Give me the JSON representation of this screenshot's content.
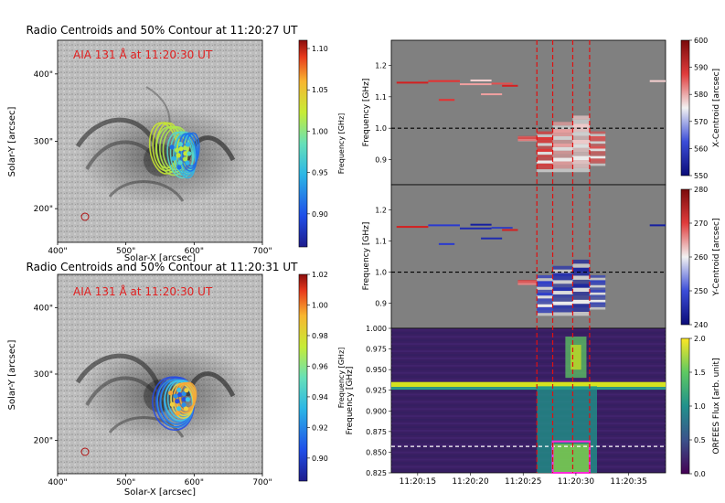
{
  "chart_data": [
    {
      "type": "scatter",
      "panel": "top-left image",
      "title": "Radio Centroids and 50% Contour at 11:20:27 UT",
      "annotation": "AIA 131 Å at 11:20:30 UT",
      "xlabel": "Solar-X [arcsec]",
      "ylabel": "Solar-Y [arcsec]",
      "xlim": [
        400,
        700
      ],
      "ylim": [
        150,
        450
      ],
      "xticks": [
        "400\"",
        "500\"",
        "600\"",
        "700\""
      ],
      "yticks": [
        "200\"",
        "300\"",
        "400\""
      ],
      "colorbar": {
        "label": "Frequency [GHz]",
        "min": 0.86,
        "max": 1.11,
        "ticks": [
          "0.90",
          "0.95",
          "1.00",
          "1.05",
          "1.10"
        ]
      },
      "contours": [
        {
          "freq": 0.99,
          "cx": 558,
          "cy": 292,
          "rx": 20,
          "ry": 38,
          "color": "#c8e632"
        },
        {
          "freq": 0.98,
          "cx": 570,
          "cy": 288,
          "rx": 22,
          "ry": 36,
          "color": "#aee84a"
        },
        {
          "freq": 0.95,
          "cx": 582,
          "cy": 282,
          "rx": 18,
          "ry": 34,
          "color": "#56d6c8"
        },
        {
          "freq": 0.93,
          "cx": 590,
          "cy": 280,
          "rx": 14,
          "ry": 32,
          "color": "#30b4e6"
        },
        {
          "freq": 0.91,
          "cx": 594,
          "cy": 286,
          "rx": 12,
          "ry": 28,
          "color": "#1e6ee6"
        }
      ],
      "centroids_note": "cluster near (565, 288)",
      "beam": {
        "x": 432,
        "y": 188
      }
    },
    {
      "type": "scatter",
      "panel": "bottom-left image",
      "title": "Radio Centroids and 50% Contour at 11:20:31 UT",
      "annotation": "AIA 131 Å at 11:20:30 UT",
      "xlabel": "Solar-X [arcsec]",
      "ylabel": "Solar-Y [arcsec]",
      "xlim": [
        400,
        700
      ],
      "ylim": [
        150,
        450
      ],
      "xticks": [
        "400\"",
        "500\"",
        "600\"",
        "700\""
      ],
      "yticks": [
        "200\"",
        "300\"",
        "400\""
      ],
      "colorbar": {
        "label": "Frequency [GHz]",
        "min": 0.885,
        "max": 1.02,
        "ticks": [
          "0.90",
          "0.92",
          "0.94",
          "0.96",
          "0.98",
          "1.00",
          "1.02"
        ]
      },
      "contours": [
        {
          "freq": 0.89,
          "cx": 572,
          "cy": 258,
          "rx": 30,
          "ry": 40,
          "color": "#2a4ee0"
        },
        {
          "freq": 0.91,
          "cx": 575,
          "cy": 258,
          "rx": 26,
          "ry": 36,
          "color": "#2b8fe8"
        },
        {
          "freq": 0.93,
          "cx": 580,
          "cy": 262,
          "rx": 20,
          "ry": 30,
          "color": "#3fc4e8"
        },
        {
          "freq": 0.95,
          "cx": 585,
          "cy": 262,
          "rx": 16,
          "ry": 26,
          "color": "#f0d040"
        },
        {
          "freq": 0.96,
          "cx": 588,
          "cy": 266,
          "rx": 14,
          "ry": 22,
          "color": "#f7a636"
        }
      ],
      "centroids_note": "cluster near (580, 270)",
      "beam": {
        "x": 432,
        "y": 192
      }
    },
    {
      "type": "heatmap",
      "panel": "right top",
      "ylabel": "Frequency [GHz]",
      "ylim": [
        0.82,
        1.28
      ],
      "yticks": [
        "0.9",
        "1.0",
        "1.1",
        "1.2"
      ],
      "colorbar": {
        "label": "X-Centroid [arcsec]",
        "min": 550,
        "max": 600,
        "ticks": [
          "550",
          "560",
          "570",
          "580",
          "590",
          "600"
        ]
      },
      "reference_line_freq": 1.0
    },
    {
      "type": "heatmap",
      "panel": "right middle",
      "ylabel": "Frequency [GHz]",
      "ylim": [
        0.82,
        1.28
      ],
      "yticks": [
        "0.9",
        "1.0",
        "1.1",
        "1.2"
      ],
      "colorbar": {
        "label": "Y-Centroid [arcsec]",
        "min": 240,
        "max": 280,
        "ticks": [
          "240",
          "250",
          "260",
          "270",
          "280"
        ]
      },
      "reference_line_freq": 1.0
    },
    {
      "type": "heatmap",
      "panel": "right bottom",
      "ylabel": "Frequency [GHz]",
      "ylim": [
        0.825,
        1.0
      ],
      "yticks": [
        "0.825",
        "0.850",
        "0.875",
        "0.900",
        "0.925",
        "0.950",
        "0.975",
        "1.000"
      ],
      "xlim_seconds": [
        12.5,
        38.5
      ],
      "xtick_seconds": [
        15,
        20,
        25,
        30,
        35
      ],
      "xticks": [
        "11:20:15",
        "11:20:20",
        "11:20:25",
        "11:20:30",
        "11:20:35"
      ],
      "colorbar": {
        "label": "ORFEES Flux [arb. unit]",
        "min": 0.0,
        "max": 2.0,
        "ticks": [
          "0.0",
          "0.5",
          "1.0",
          "1.5",
          "2.0"
        ]
      },
      "reference_line_freq": 0.857,
      "box": {
        "t0": 27.8,
        "t1": 31.3,
        "f0": 0.825,
        "f1": 0.863
      }
    }
  ],
  "time_markers_seconds": [
    26.3,
    27.8,
    29.7,
    31.3
  ]
}
